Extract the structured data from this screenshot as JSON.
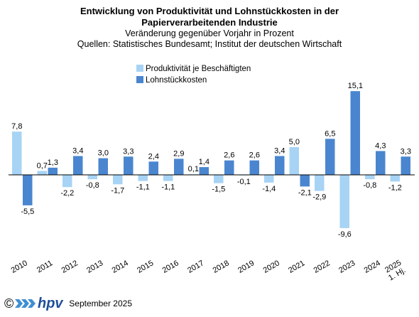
{
  "header": {
    "title_line1": "Entwicklung von Produktivität und Lohnstückkosten in der",
    "title_line2": "Papierverarbeitenden Industrie",
    "subtitle": "Veränderung gegenüber Vorjahr in Prozent",
    "sources": "Quellen: Statistisches Bundesamt; Institut der deutschen Wirtschaft"
  },
  "colors": {
    "productivity": "#a7d3f5",
    "labor_cost": "#4a86cf",
    "axis": "#000000"
  },
  "chart_data": {
    "type": "bar",
    "categories": [
      "2010",
      "2011",
      "2012",
      "2013",
      "2014",
      "2015",
      "2016",
      "2017",
      "2018",
      "2019",
      "2020",
      "2021",
      "2022",
      "2023",
      "2024",
      "1. Hj. 2025"
    ],
    "series": [
      {
        "name": "Produktivität je Beschäftigten",
        "values": [
          7.8,
          0.7,
          -2.2,
          -0.8,
          -1.7,
          -1.1,
          -1.1,
          0.1,
          -1.5,
          -0.1,
          -1.4,
          5.0,
          -2.9,
          -9.6,
          -0.8,
          -1.2
        ],
        "labels": [
          "7,8",
          "0,7",
          "-2,2",
          "-0,8",
          "-1,7",
          "-1,1",
          "-1,1",
          "0,1",
          "-1,5",
          "-0,1",
          "-1,4",
          "5,0",
          "-2,9",
          "-9,6",
          "-0,8",
          "-1,2"
        ]
      },
      {
        "name": "Lohnstückkosten",
        "values": [
          -5.5,
          1.3,
          3.4,
          3.0,
          3.3,
          2.4,
          2.9,
          1.4,
          2.6,
          2.6,
          3.4,
          -2.1,
          6.5,
          15.1,
          4.3,
          3.3
        ],
        "labels": [
          "-5,5",
          "1,3",
          "3,4",
          "3,0",
          "3,3",
          "2,4",
          "2,9",
          "1,4",
          "2,6",
          "2,6",
          "3,4",
          "-2,1",
          "6,5",
          "15,1",
          "4,3",
          "3,3"
        ]
      }
    ],
    "ylim": [
      -13,
      18
    ],
    "grid": false,
    "legend": "top-center"
  },
  "footer": {
    "copyright": "©",
    "logo_text": "hpv",
    "date": "September 2025"
  }
}
